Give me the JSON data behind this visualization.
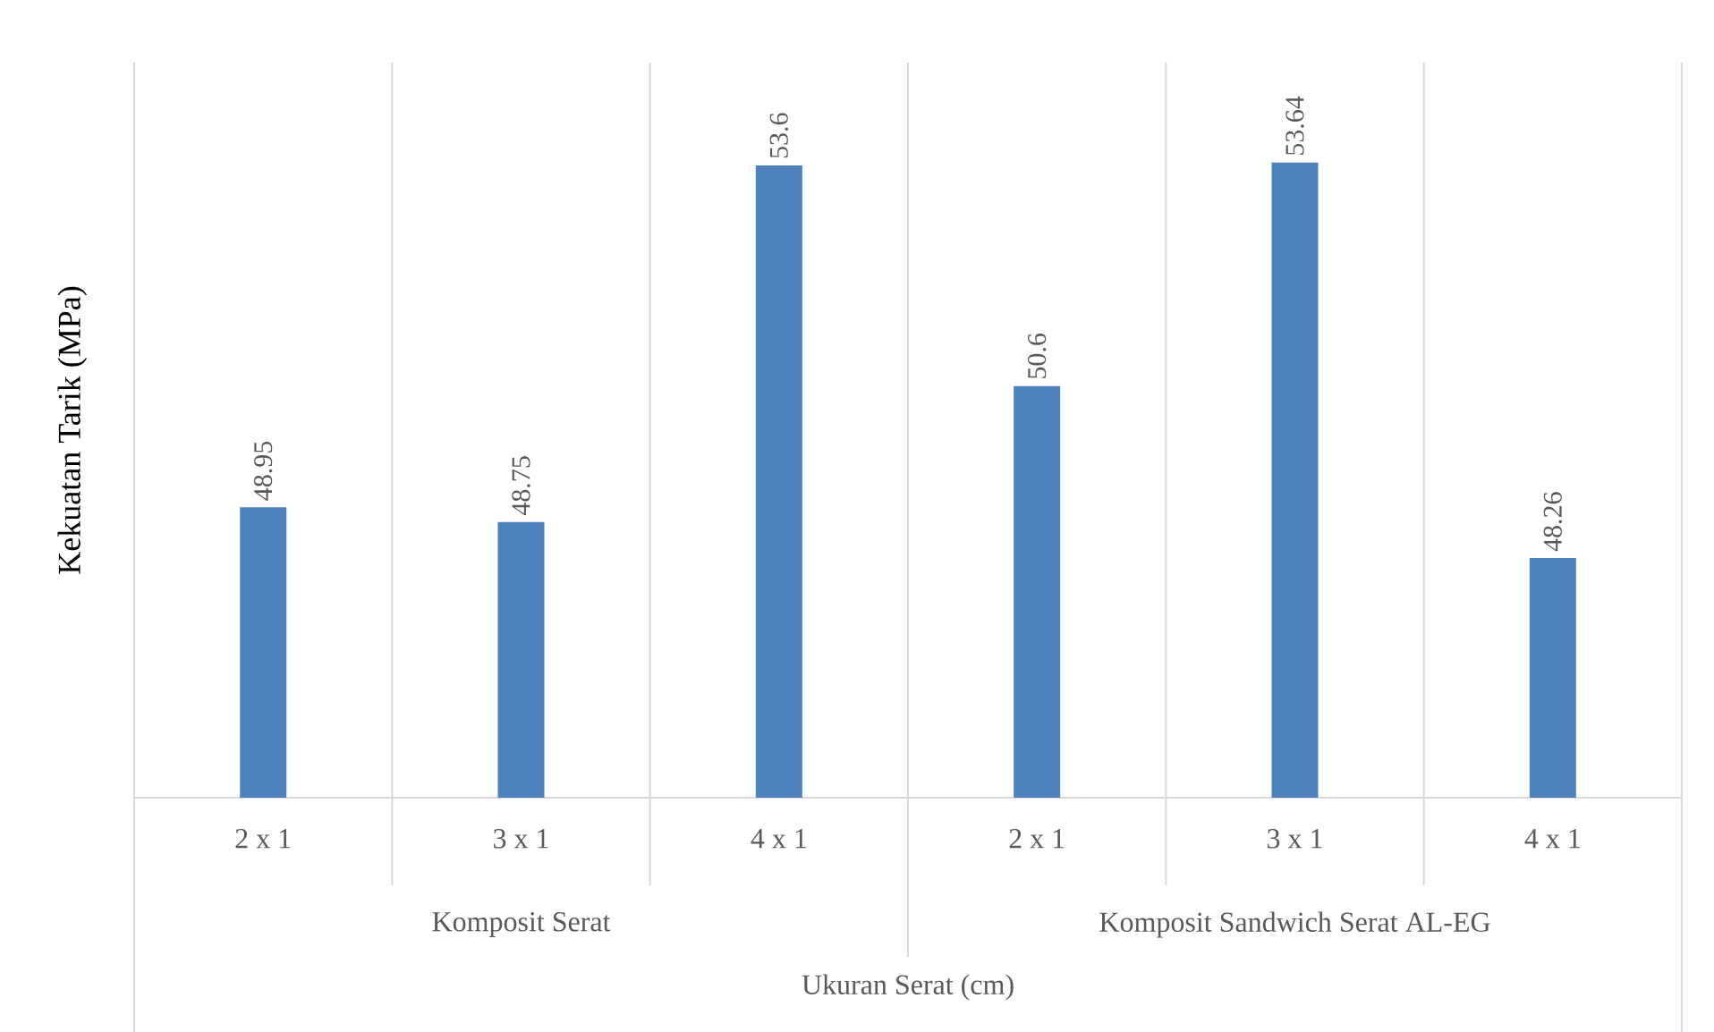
{
  "chart_data": {
    "type": "bar",
    "categories": [
      "2 x 1",
      "3 x 1",
      "4 x 1",
      "2 x 1",
      "3 x 1",
      "4 x 1"
    ],
    "values": [
      48.95,
      48.75,
      53.6,
      50.6,
      53.64,
      48.26
    ],
    "color": "#4f81bd",
    "ylim": [
      45,
      55
    ],
    "tick_labels": "x",
    "data_labels": true,
    "grid": "x",
    "xlabel": "Ukuran Serat (cm)",
    "ylabel": "Kekuatan Tarik (MPa)",
    "annotations": [
      "Komposit Serat",
      "Komposit Sandwich Serat AL-EG"
    ]
  }
}
